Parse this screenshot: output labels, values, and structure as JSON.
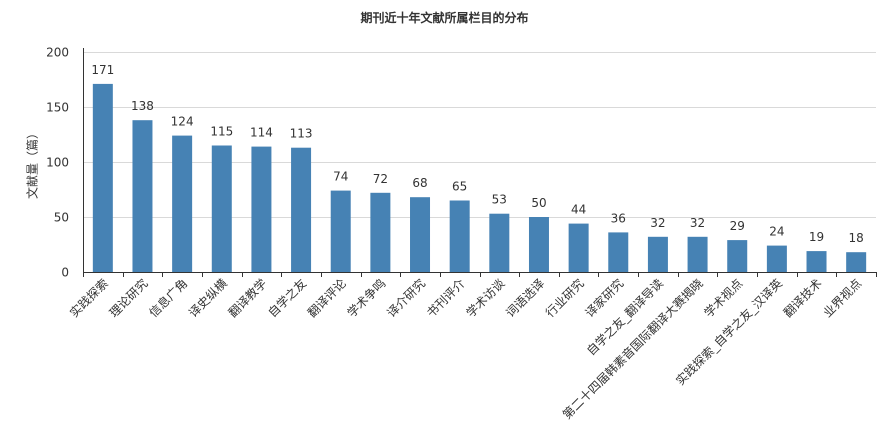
{
  "chart_data": {
    "type": "bar",
    "title": "期刊近十年文献所属栏目的分布",
    "xlabel": "",
    "ylabel": "文献量（篇）",
    "ylim": [
      0,
      200
    ],
    "yticks": [
      0,
      50,
      100,
      150,
      200
    ],
    "grid": true,
    "bar_color": "#4682b4",
    "categories": [
      "实践探索",
      "理论研究",
      "信息广角",
      "译史纵横",
      "翻译教学",
      "自学之友",
      "翻译评论",
      "学术争鸣",
      "译介研究",
      "书刊评介",
      "学术访谈",
      "词语选译",
      "行业研究",
      "译家研究",
      "自学之友_翻译导读",
      "第二十四届韩素音国际翻译大赛揭晓",
      "学术视点",
      "实践探索_自学之友_汉译英",
      "翻译技术",
      "业界视点"
    ],
    "values": [
      171,
      138,
      124,
      115,
      114,
      113,
      74,
      72,
      68,
      65,
      53,
      50,
      44,
      36,
      32,
      32,
      29,
      24,
      19,
      18
    ]
  }
}
